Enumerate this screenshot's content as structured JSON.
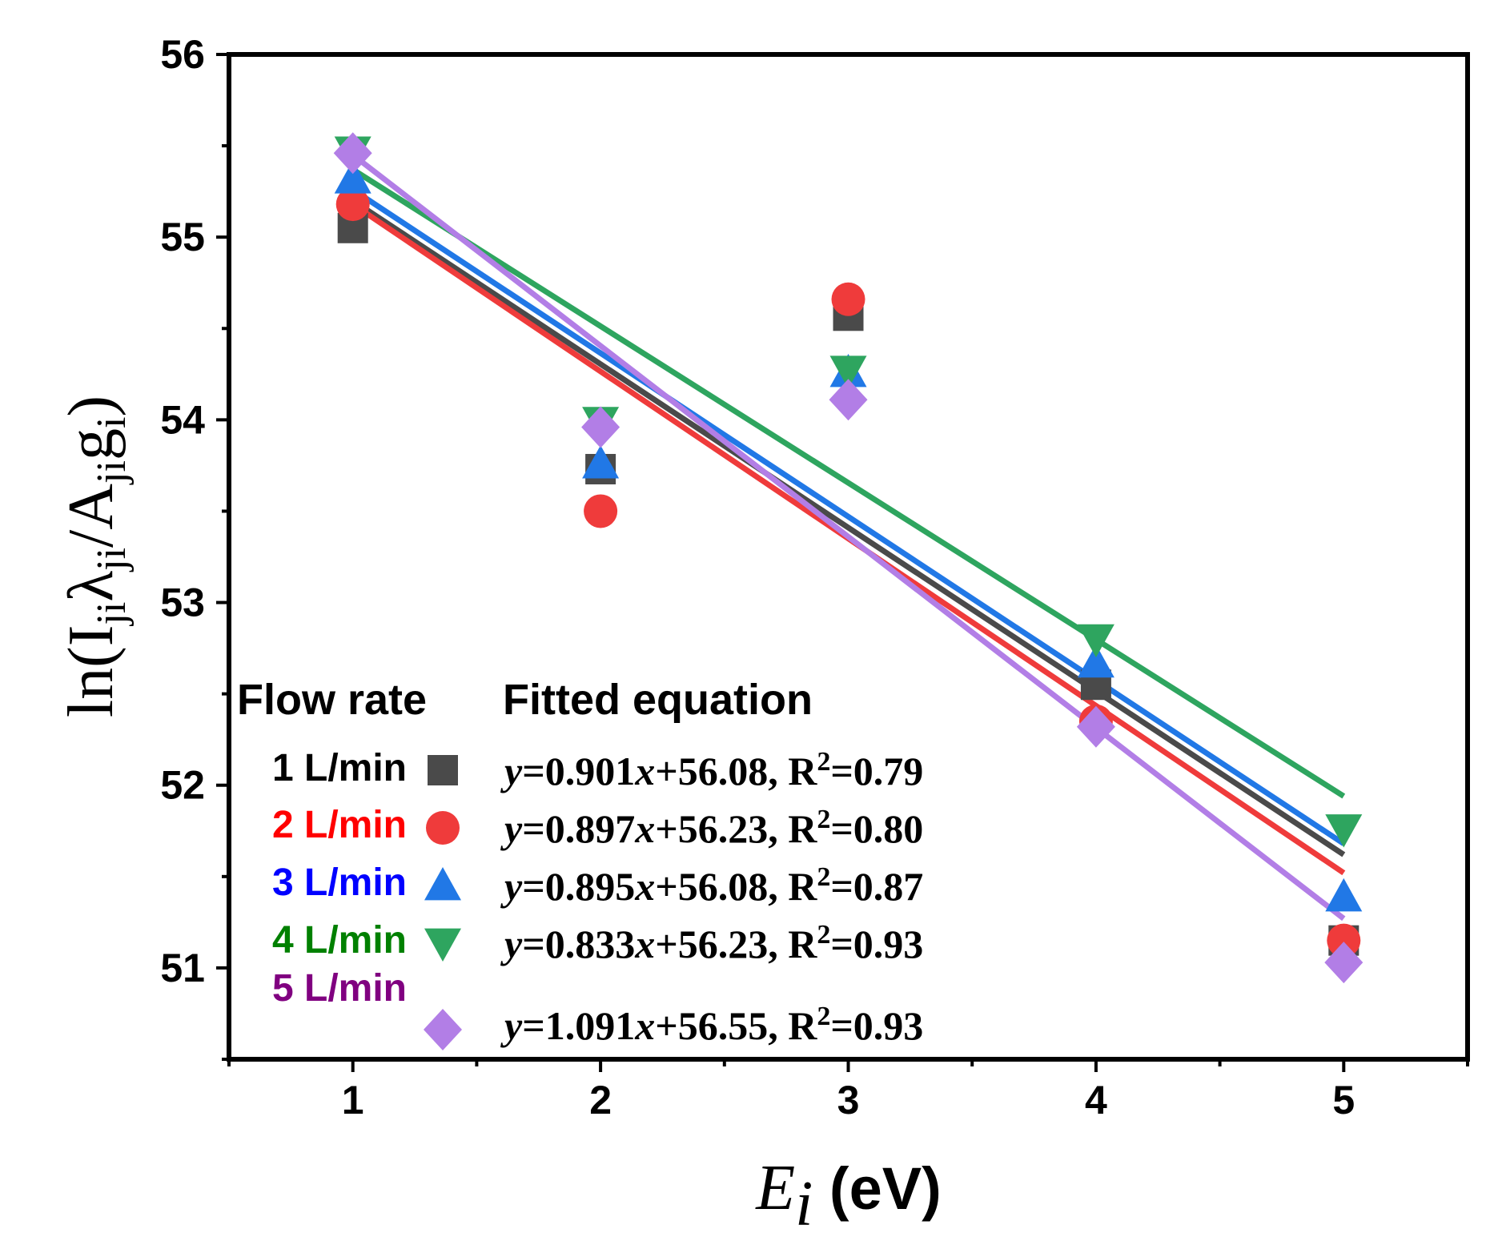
{
  "chart_data": {
    "type": "scatter",
    "title": "",
    "xlabel": "E_i (eV)",
    "xlabel_parts": {
      "symbol": "E",
      "subscript": "i",
      "unit": " (eV)"
    },
    "ylabel": "ln(I_ji λ_ji / A_ji g_i)",
    "ylabel_parts": {
      "a": "ln(I",
      "b": "ji",
      "c": "λ",
      "d": "ji",
      "e": "/A",
      "f": "ji",
      "g": "g",
      "h": "i",
      "i": ")"
    },
    "xlim": [
      0.5,
      5.5
    ],
    "ylim": [
      50.5,
      56
    ],
    "x_ticks": [
      1,
      2,
      3,
      4,
      5
    ],
    "x_tick_labels": [
      "1",
      "2",
      "3",
      "4",
      "5"
    ],
    "y_ticks": [
      51,
      52,
      53,
      54,
      55,
      56
    ],
    "y_tick_labels": [
      "51",
      "52",
      "53",
      "54",
      "55",
      "56"
    ],
    "grid": false,
    "legend": {
      "placement": "bottom-left",
      "header_left": "Flow rate",
      "header_right": "Fitted equation"
    },
    "series": [
      {
        "name": "1 L/min",
        "color": "#4a4a4a",
        "label_color": "#000000",
        "marker": "square",
        "x": [
          1,
          2,
          3,
          4,
          5
        ],
        "y": [
          55.05,
          53.73,
          54.57,
          52.55,
          51.15
        ],
        "fit_line": [
          [
            1,
            55.2
          ],
          [
            5,
            51.62
          ]
        ],
        "equation": {
          "a": "y",
          "b": "=0.901",
          "c": "x",
          "d": "+56.08, R",
          "e": "2",
          "f": "=0.79"
        }
      },
      {
        "name": "2 L/min",
        "color": "#ef3b3b",
        "label_color": "#ff0000",
        "marker": "circle",
        "x": [
          1,
          2,
          3,
          4,
          5
        ],
        "y": [
          55.18,
          53.5,
          54.66,
          52.35,
          51.15
        ],
        "fit_line": [
          [
            1,
            55.18
          ],
          [
            5,
            51.52
          ]
        ],
        "equation": {
          "a": "y",
          "b": "=0.897",
          "c": "x",
          "d": "+56.23, R",
          "e": "2",
          "f": "=0.80"
        }
      },
      {
        "name": "3 L/min",
        "color": "#2178e6",
        "label_color": "#0000ff",
        "marker": "triangle-up",
        "x": [
          1,
          2,
          3,
          4,
          5
        ],
        "y": [
          55.32,
          53.76,
          54.26,
          52.67,
          51.39
        ],
        "fit_line": [
          [
            1,
            55.26
          ],
          [
            5,
            51.68
          ]
        ],
        "equation": {
          "a": "y",
          "b": "=0.895",
          "c": "x",
          "d": "+56.08, R",
          "e": "2",
          "f": "=0.87"
        }
      },
      {
        "name": "4 L/min",
        "color": "#2ea55f",
        "label_color": "#008000",
        "marker": "triangle-down",
        "x": [
          1,
          2,
          3,
          4,
          5
        ],
        "y": [
          55.47,
          53.99,
          54.27,
          52.8,
          51.76
        ],
        "fit_line": [
          [
            1,
            55.37
          ],
          [
            5,
            51.94
          ]
        ],
        "equation": {
          "a": "y",
          "b": "=0.833",
          "c": "x",
          "d": "+56.23, R",
          "e": "2",
          "f": "=0.93"
        }
      },
      {
        "name": "5 L/min",
        "color": "#b27ee6",
        "label_color": "#800080",
        "marker": "diamond",
        "x": [
          1,
          2,
          3,
          4,
          5
        ],
        "y": [
          55.46,
          53.96,
          54.11,
          52.32,
          51.03
        ],
        "fit_line": [
          [
            1,
            55.45
          ],
          [
            5,
            51.27
          ]
        ],
        "equation": {
          "a": "y",
          "b": "=1.091",
          "c": "x",
          "d": "+56.55, R",
          "e": "2",
          "f": "=0.93"
        }
      }
    ]
  }
}
